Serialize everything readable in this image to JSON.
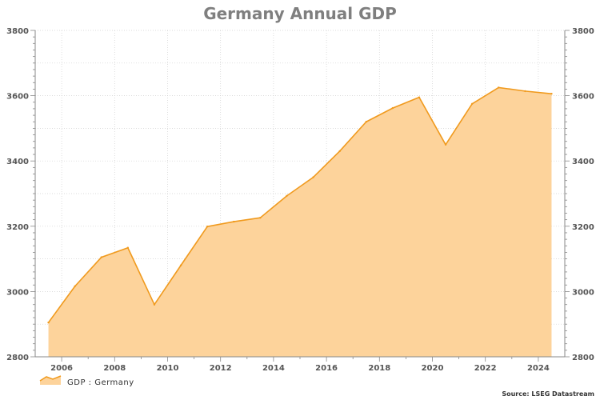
{
  "chart_data": {
    "type": "area",
    "title": "Germany Annual GDP",
    "xlabel": "",
    "ylabel": "",
    "x": [
      2005.5,
      2006.5,
      2007.5,
      2008.5,
      2009.5,
      2010.5,
      2011.5,
      2012.5,
      2013.5,
      2014.5,
      2015.5,
      2016.5,
      2017.5,
      2018.5,
      2019.5,
      2020.5,
      2021.5,
      2022.5,
      2023.5,
      2024.5
    ],
    "series": [
      {
        "name": "GDP : Germany",
        "values": [
          2905,
          3016,
          3105,
          3134,
          2960,
          3080,
          3199,
          3214,
          3226,
          3293,
          3350,
          3430,
          3520,
          3562,
          3595,
          3450,
          3575,
          3625,
          3614,
          3606
        ],
        "color": "#f09a1e",
        "fill": "#fdd39b"
      }
    ],
    "xticks": [
      "2006",
      "2008",
      "2010",
      "2012",
      "2014",
      "2016",
      "2018",
      "2020",
      "2022",
      "2024"
    ],
    "yticks_left": [
      "2800",
      "3000",
      "3200",
      "3400",
      "3600",
      "3800"
    ],
    "yticks_right": [
      "2800",
      "3000",
      "3200",
      "3400",
      "3600",
      "3800"
    ],
    "xlim": [
      2005,
      2025
    ],
    "ylim": [
      2800,
      3800
    ],
    "grid": true,
    "legend_position": "bottom-left",
    "source": "Source: LSEG Datastream"
  }
}
